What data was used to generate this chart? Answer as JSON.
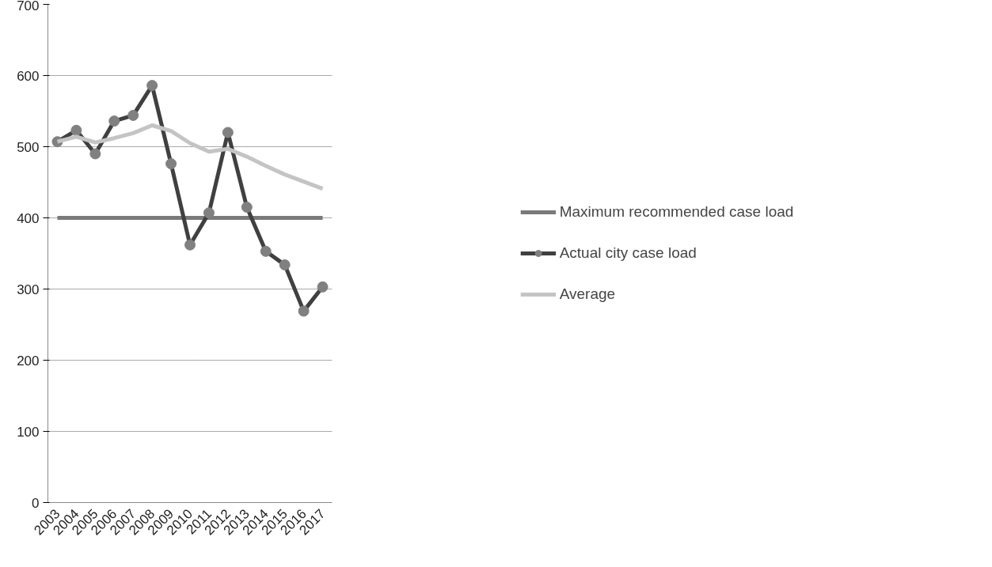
{
  "chart_data": {
    "type": "line",
    "categories": [
      "2003",
      "2004",
      "2005",
      "2006",
      "2007",
      "2008",
      "2009",
      "2010",
      "2011",
      "2012",
      "2013",
      "2014",
      "2015",
      "2016",
      "2017"
    ],
    "series": [
      {
        "name": "Maximum recommended case load",
        "color": "#7a7a7a",
        "marker": "none",
        "values": [
          400,
          400,
          400,
          400,
          400,
          400,
          400,
          400,
          400,
          400,
          400,
          400,
          400,
          400,
          400
        ]
      },
      {
        "name": "Actual city case load",
        "color": "#404040",
        "marker": "circle",
        "values": [
          507,
          523,
          490,
          536,
          544,
          586,
          476,
          362,
          407,
          520,
          415,
          353,
          334,
          269,
          303
        ]
      },
      {
        "name": "Average",
        "color": "#c4c4c4",
        "marker": "none",
        "values": [
          507,
          514,
          506,
          512,
          519,
          530,
          522,
          505,
          493,
          497,
          486,
          473,
          461,
          451,
          441
        ]
      }
    ],
    "ylim": [
      0,
      700
    ],
    "yticks": [
      0,
      100,
      200,
      300,
      400,
      500,
      600,
      700
    ],
    "grid": "y",
    "legend": "right"
  }
}
